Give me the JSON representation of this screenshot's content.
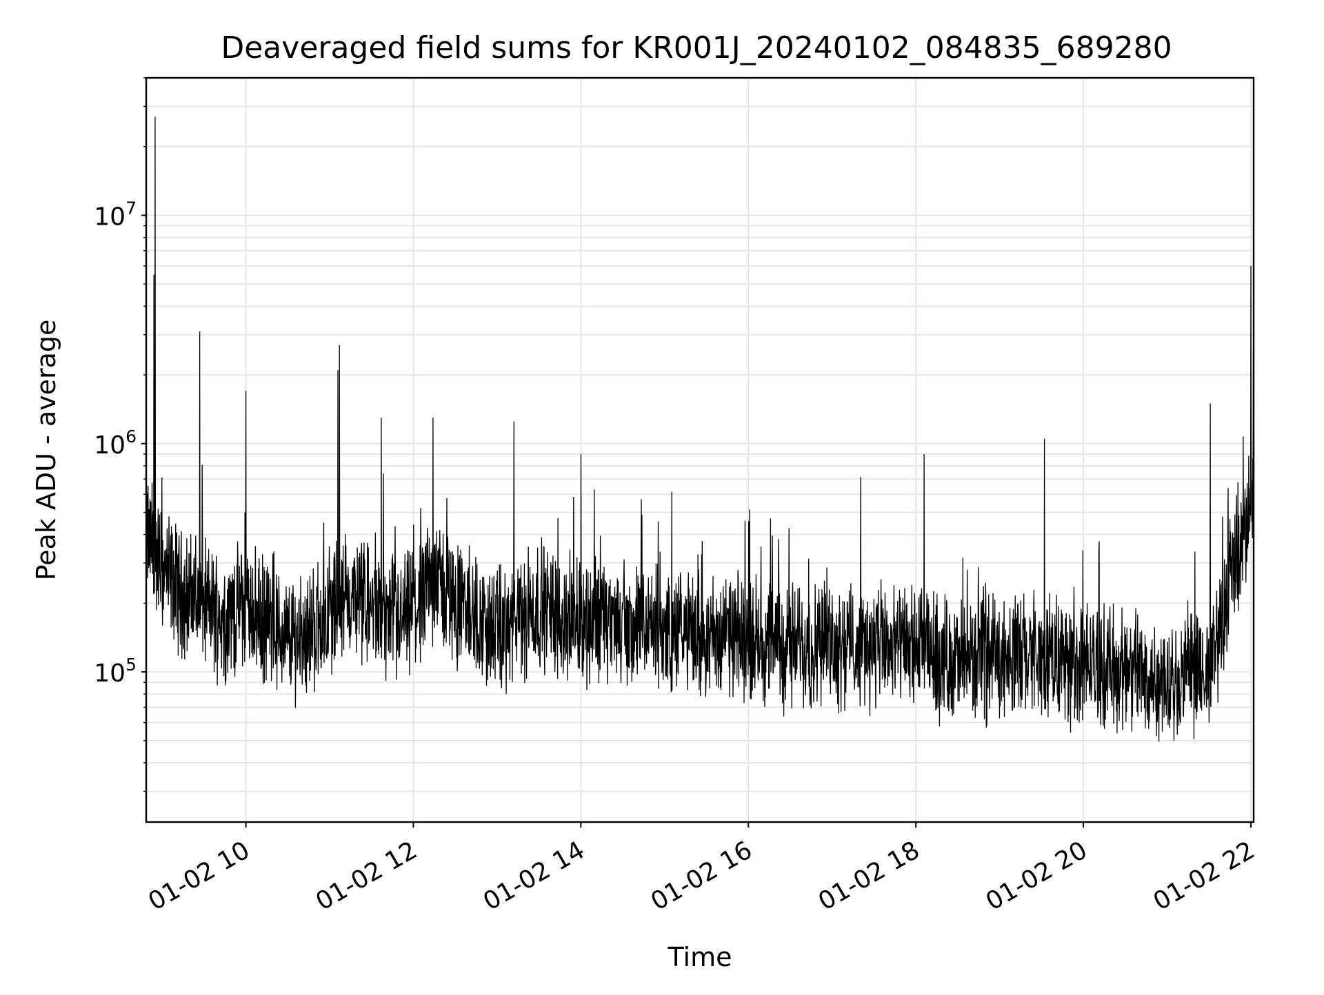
{
  "chart_data": {
    "type": "line",
    "title": "Deaveraged field sums for KR001J_20240102_084835_689280",
    "xlabel": "Time",
    "ylabel": "Peak ADU - average",
    "yscale": "log",
    "xlim": [
      "2024-01-02 08:48:35",
      "2024-01-02 22:02:00"
    ],
    "ylim": [
      22000,
      40000000
    ],
    "grid": true,
    "legend": "none",
    "line_color": "#000000",
    "grid_color": "#e6e6e6",
    "x_tick_labels": [
      {
        "value": "2024-01-02 10:00",
        "label": "01-02 10"
      },
      {
        "value": "2024-01-02 12:00",
        "label": "01-02 12"
      },
      {
        "value": "2024-01-02 14:00",
        "label": "01-02 14"
      },
      {
        "value": "2024-01-02 16:00",
        "label": "01-02 16"
      },
      {
        "value": "2024-01-02 18:00",
        "label": "01-02 18"
      },
      {
        "value": "2024-01-02 20:00",
        "label": "01-02 20"
      },
      {
        "value": "2024-01-02 22:00",
        "label": "01-02 22"
      }
    ],
    "y_ticks": [
      {
        "value": 100000,
        "base": "10",
        "exp": "5"
      },
      {
        "value": 1000000,
        "base": "10",
        "exp": "6"
      },
      {
        "value": 10000000,
        "base": "10",
        "exp": "7"
      }
    ],
    "series": [
      {
        "x": [
          "2024-01-02 08:48:35",
          "2024-01-02 09:00",
          "2024-01-02 09:15",
          "2024-01-02 09:30",
          "2024-01-02 09:45",
          "2024-01-02 10:00",
          "2024-01-02 10:15",
          "2024-01-02 10:30",
          "2024-01-02 10:45",
          "2024-01-02 11:00",
          "2024-01-02 11:15",
          "2024-01-02 11:30",
          "2024-01-02 11:45",
          "2024-01-02 12:00",
          "2024-01-02 12:15",
          "2024-01-02 12:30",
          "2024-01-02 12:45",
          "2024-01-02 13:00",
          "2024-01-02 13:15",
          "2024-01-02 13:30",
          "2024-01-02 13:45",
          "2024-01-02 14:00",
          "2024-01-02 14:30",
          "2024-01-02 15:00",
          "2024-01-02 15:30",
          "2024-01-02 16:00",
          "2024-01-02 16:30",
          "2024-01-02 17:00",
          "2024-01-02 17:30",
          "2024-01-02 18:00",
          "2024-01-02 18:30",
          "2024-01-02 19:00",
          "2024-01-02 19:30",
          "2024-01-02 20:00",
          "2024-01-02 20:30",
          "2024-01-02 21:00",
          "2024-01-02 21:30",
          "2024-01-02 21:45",
          "2024-01-02 22:00",
          "2024-01-02 22:02"
        ],
        "y": [
          400000,
          280000,
          220000,
          200000,
          170000,
          200000,
          160000,
          140000,
          150000,
          180000,
          210000,
          190000,
          160000,
          180000,
          260000,
          200000,
          170000,
          150000,
          160000,
          200000,
          170000,
          170000,
          160000,
          150000,
          145000,
          140000,
          130000,
          135000,
          130000,
          125000,
          110000,
          120000,
          115000,
          110000,
          100000,
          95000,
          95000,
          250000,
          500000,
          800000
        ]
      }
    ],
    "spikes": [
      {
        "x": "2024-01-02 08:55",
        "y": 27000000
      },
      {
        "x": "2024-01-02 08:54",
        "y": 5500000
      },
      {
        "x": "2024-01-02 09:27",
        "y": 3100000
      },
      {
        "x": "2024-01-02 10:00",
        "y": 1700000
      },
      {
        "x": "2024-01-02 11:07",
        "y": 2700000
      },
      {
        "x": "2024-01-02 11:06",
        "y": 2100000
      },
      {
        "x": "2024-01-02 11:37",
        "y": 1300000
      },
      {
        "x": "2024-01-02 12:14",
        "y": 1300000
      },
      {
        "x": "2024-01-02 13:12",
        "y": 1250000
      },
      {
        "x": "2024-01-02 14:00",
        "y": 900000
      },
      {
        "x": "2024-01-02 18:06",
        "y": 900000
      },
      {
        "x": "2024-01-02 19:32",
        "y": 1050000
      },
      {
        "x": "2024-01-02 21:31",
        "y": 1500000
      },
      {
        "x": "2024-01-02 22:00",
        "y": 6000000
      }
    ]
  }
}
